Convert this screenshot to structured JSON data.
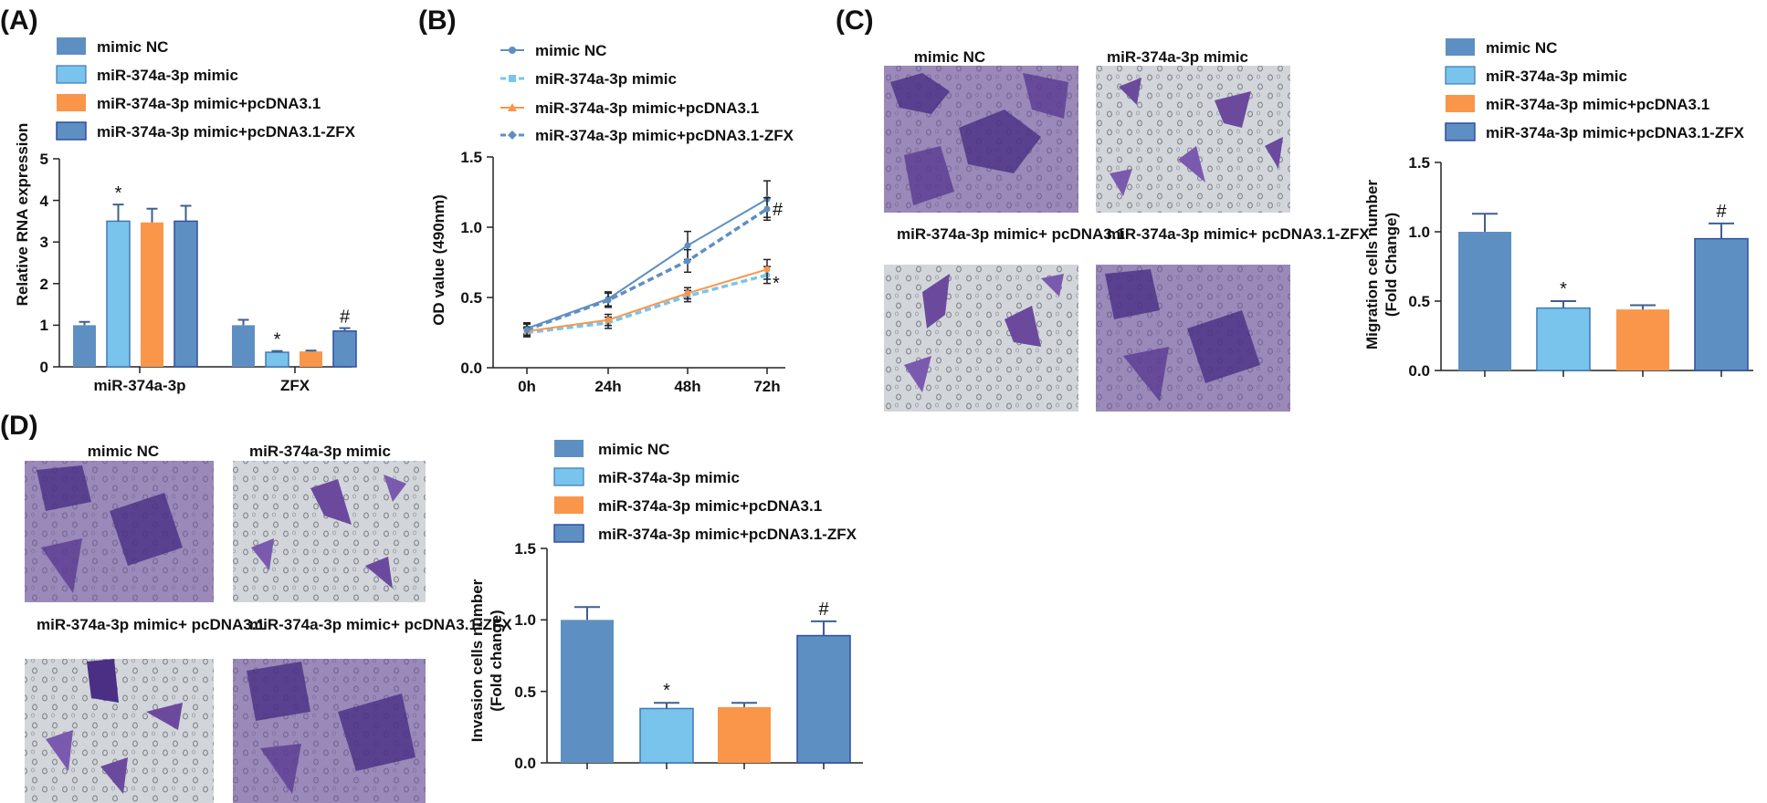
{
  "figure": {
    "panel_labels": [
      "(A)",
      "(B)",
      "(C)",
      "(D)"
    ],
    "colors": {
      "mimic_nc": "#5e8fc2",
      "mir_mimic": "#79c4ed",
      "mir_pcdna": "#f9964a",
      "mir_zfx": "#5e8fc2",
      "zfx_border": "#2f4fa0",
      "cell_stain": "#6b4a9e",
      "cell_background": "#cfd2d6"
    }
  },
  "legend_labels": [
    "mimic NC",
    "miR-374a-3p mimic",
    "miR-374a-3p mimic+pcDNA3.1",
    "miR-374a-3p mimic+pcDNA3.1-ZFX"
  ],
  "micrographs": {
    "C": [
      "mimic NC",
      "miR-374a-3p mimic",
      "miR-374a-3p mimic+ pcDNA3.1",
      "miR-374a-3p mimic+ pcDNA3.1-ZFX"
    ],
    "D": [
      "mimic NC",
      "miR-374a-3p mimic",
      "miR-374a-3p mimic+ pcDNA3.1",
      "miR-374a-3p mimic+ pcDNA3.1-ZFX"
    ]
  },
  "chart_data": [
    {
      "panel": "(A)",
      "type": "bar",
      "title": "",
      "xlabel": "",
      "ylabel": "Relative RNA expression",
      "ylim": [
        0,
        5
      ],
      "yticks": [
        "0",
        "1",
        "2",
        "3",
        "4",
        "5"
      ],
      "categories": [
        "miR-374a-3p",
        "ZFX"
      ],
      "series": [
        {
          "name": "mimic NC",
          "values": [
            1.0,
            1.0
          ],
          "errors": [
            0.08,
            0.13
          ],
          "annotations": [
            "",
            ""
          ]
        },
        {
          "name": "miR-374a-3p mimic",
          "values": [
            3.5,
            0.35
          ],
          "errors": [
            0.4,
            0.03
          ],
          "annotations": [
            "*",
            "*"
          ]
        },
        {
          "name": "miR-374a-3p mimic+pcDNA3.1",
          "values": [
            3.47,
            0.37
          ],
          "errors": [
            0.33,
            0.02
          ],
          "annotations": [
            "",
            ""
          ]
        },
        {
          "name": "miR-374a-3p mimic+pcDNA3.1-ZFX",
          "values": [
            3.5,
            0.86
          ],
          "errors": [
            0.37,
            0.07
          ],
          "annotations": [
            "",
            "#"
          ]
        }
      ]
    },
    {
      "panel": "(B)",
      "type": "line",
      "title": "",
      "xlabel": "",
      "ylabel": "OD value (490nm)",
      "ylim": [
        0,
        1.5
      ],
      "yticks": [
        "0.0",
        "0.5",
        "1.0",
        "1.5"
      ],
      "categories": [
        "0h",
        "24h",
        "48h",
        "72h"
      ],
      "series": [
        {
          "name": "mimic NC",
          "values": [
            0.28,
            0.49,
            0.87,
            1.2
          ],
          "errors": [
            0.04,
            0.05,
            0.1,
            0.13
          ]
        },
        {
          "name": "miR-374a-3p mimic",
          "values": [
            0.25,
            0.32,
            0.51,
            0.66
          ],
          "errors": [
            0.03,
            0.04,
            0.04,
            0.06
          ]
        },
        {
          "name": "miR-374a-3p mimic+pcDNA3.1",
          "values": [
            0.26,
            0.34,
            0.53,
            0.7
          ],
          "errors": [
            0.03,
            0.04,
            0.04,
            0.07
          ]
        },
        {
          "name": "miR-374a-3p mimic+pcDNA3.1-ZFX",
          "values": [
            0.27,
            0.48,
            0.76,
            1.13
          ],
          "errors": [
            0.04,
            0.05,
            0.08,
            0.08
          ]
        }
      ],
      "annotations": [
        {
          "label": "#",
          "at": "72h"
        },
        {
          "label": "*",
          "at": "72h"
        }
      ]
    },
    {
      "panel": "(C)",
      "type": "bar",
      "title": "",
      "xlabel": "",
      "ylabel": [
        "Migration cells number",
        "(Fold Change)"
      ],
      "ylim": [
        0,
        1.5
      ],
      "yticks": [
        "0.0",
        "0.5",
        "1.0",
        "1.5"
      ],
      "categories": [
        "mimic NC",
        "miR-374a-3p mimic",
        "miR-374a-3p mimic+pcDNA3.1",
        "miR-374a-3p mimic+pcDNA3.1-ZFX"
      ],
      "values": [
        1.0,
        0.45,
        0.44,
        0.95
      ],
      "errors": [
        0.13,
        0.05,
        0.03,
        0.11
      ],
      "annotations": [
        "",
        "*",
        "",
        "#"
      ]
    },
    {
      "panel": "(D)",
      "type": "bar",
      "title": "",
      "xlabel": "",
      "ylabel": [
        "Invasion cells number",
        "(Fold change)"
      ],
      "ylim": [
        0,
        1.5
      ],
      "yticks": [
        "0.0",
        "0.5",
        "1.0",
        "1.5"
      ],
      "categories": [
        "mimic NC",
        "miR-374a-3p mimic",
        "miR-374a-3p mimic+pcDNA3.1",
        "miR-374a-3p mimic+pcDNA3.1-ZFX"
      ],
      "values": [
        1.0,
        0.38,
        0.39,
        0.89
      ],
      "errors": [
        0.09,
        0.04,
        0.03,
        0.1
      ],
      "annotations": [
        "",
        "*",
        "",
        "#"
      ]
    }
  ]
}
